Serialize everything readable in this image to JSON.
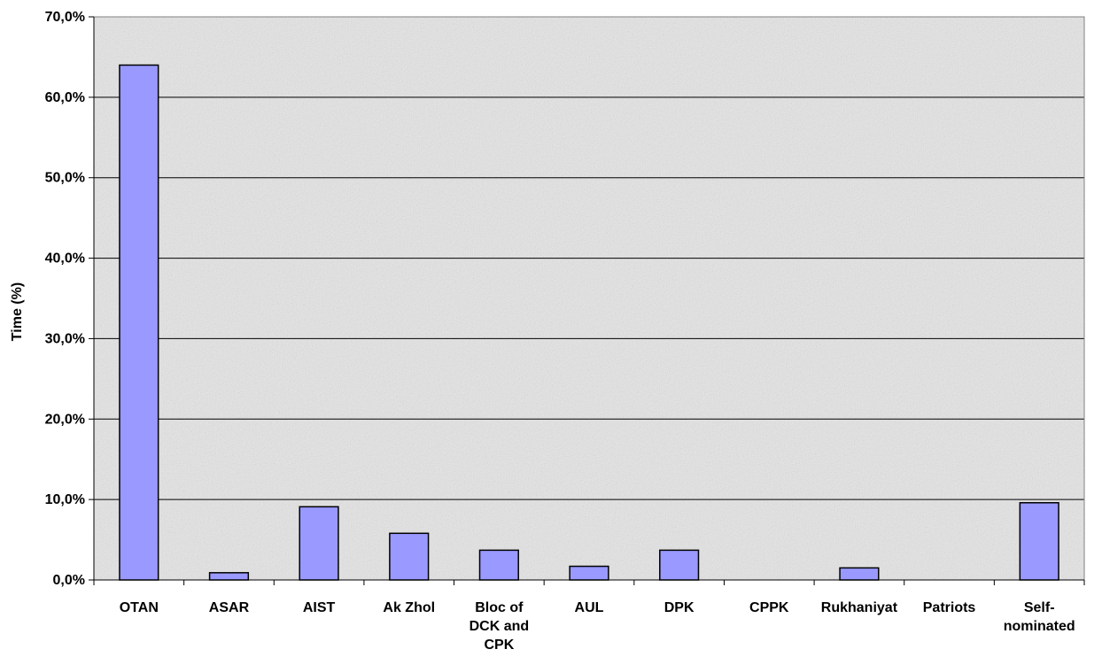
{
  "chart_data": {
    "type": "bar",
    "title": "",
    "xlabel": "",
    "ylabel": "Time (%)",
    "ylim": [
      0,
      70
    ],
    "ytick_values": [
      0,
      10,
      20,
      30,
      40,
      50,
      60,
      70
    ],
    "ytick_labels": [
      "0,0%",
      "10,0%",
      "20,0%",
      "30,0%",
      "40,0%",
      "50,0%",
      "60,0%",
      "70,0%"
    ],
    "grid": true,
    "legend": "none",
    "categories": [
      [
        "OTAN"
      ],
      [
        "ASAR"
      ],
      [
        "AIST"
      ],
      [
        "Ak Zhol"
      ],
      [
        "Bloc of",
        "DCK and",
        "CPK"
      ],
      [
        "AUL"
      ],
      [
        "DPK"
      ],
      [
        "CPPK"
      ],
      [
        "Rukhaniyat"
      ],
      [
        "Patriots"
      ],
      [
        "Self-",
        "nominated"
      ]
    ],
    "values": [
      64.0,
      0.9,
      9.1,
      5.8,
      3.7,
      1.7,
      3.7,
      0.0,
      1.5,
      0.0,
      9.6
    ],
    "colors": {
      "bar_fill": "#9999ff",
      "bar_stroke": "#000000",
      "plot_background": "#e6e6e6",
      "gridline": "#000000"
    }
  }
}
